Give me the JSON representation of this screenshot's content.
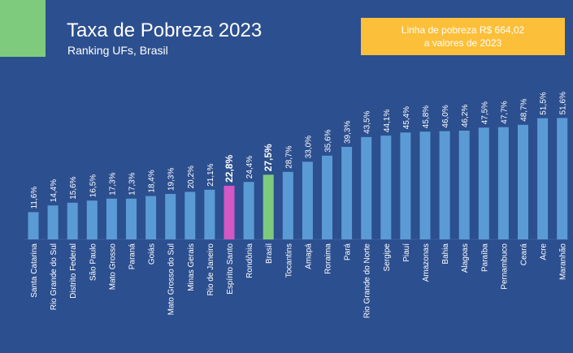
{
  "header": {
    "title": "Taxa de Pobreza 2023",
    "subtitle": "Ranking UFs, Brasil"
  },
  "note": {
    "line1": "Linha de pobreza R$ 664,02",
    "line2": "a valores de 2023"
  },
  "colors": {
    "background": "#2c4f8f",
    "bar": "#5b9bd5",
    "highlight_state": "#d357c4",
    "highlight_brasil": "#7ecb7e",
    "note_box": "#fcbf3a",
    "accent_tab": "#7ecb7e"
  },
  "chart_data": {
    "type": "bar",
    "title": "Taxa de Pobreza 2023",
    "subtitle": "Ranking UFs, Brasil",
    "categories": [
      "Santa Catarina",
      "Rio Grande do Sul",
      "Distrito Federal",
      "São Paulo",
      "Mato Grosso",
      "Paraná",
      "Goiás",
      "Mato Grosso do Sul",
      "Minas Gerais",
      "Rio de Janeiro",
      "Espírito Santo",
      "Rondônia",
      "Brasil",
      "Tocantins",
      "Amapá",
      "Roraima",
      "Pará",
      "Rio Grande do Norte",
      "Sergipe",
      "Piauí",
      "Amazonas",
      "Bahia",
      "Alagoas",
      "Paraíba",
      "Pernambuco",
      "Ceará",
      "Acre",
      "Maranhão"
    ],
    "values": [
      11.6,
      14.4,
      15.6,
      16.5,
      17.3,
      17.3,
      18.4,
      19.3,
      20.2,
      21.1,
      22.8,
      24.4,
      27.5,
      28.7,
      33.0,
      35.6,
      39.3,
      43.5,
      44.1,
      45.4,
      45.8,
      46.0,
      46.2,
      47.5,
      47.7,
      48.7,
      51.5,
      51.6
    ],
    "labels": [
      "11,6%",
      "14,4%",
      "15,6%",
      "16,5%",
      "17,3%",
      "17,3%",
      "18,4%",
      "19,3%",
      "20,2%",
      "21,1%",
      "22,8%",
      "24,4%",
      "27,5%",
      "28,7%",
      "33,0%",
      "35,6%",
      "39,3%",
      "43,5%",
      "44,1%",
      "45,4%",
      "45,8%",
      "46,0%",
      "46,2%",
      "47,5%",
      "47,7%",
      "48,7%",
      "51,5%",
      "51,6%"
    ],
    "highlights": {
      "Espírito Santo": "highlight_state",
      "Brasil": "highlight_brasil"
    },
    "bold_labels": [
      "Espírito Santo",
      "Brasil"
    ],
    "ylim": [
      0,
      60
    ],
    "grid": false,
    "legend": "none"
  }
}
